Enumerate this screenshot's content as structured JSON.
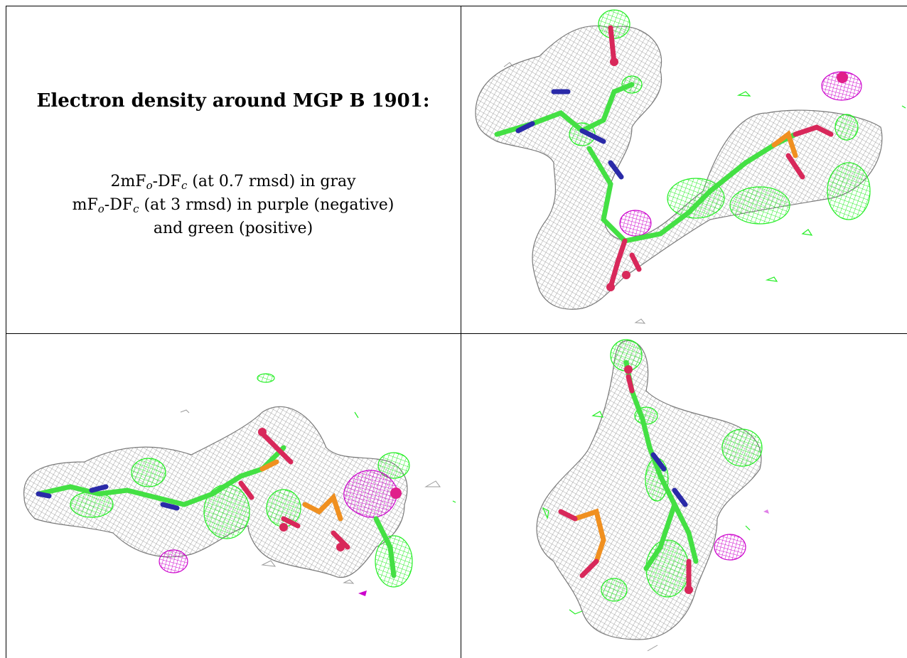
{
  "caption": {
    "title": "Electron density around MGP B 1901:",
    "line1_a": "2mF",
    "line1_sub1": "o",
    "line1_b": "-DF",
    "line1_sub2": "c",
    "line1_c": " (at 0.7 rmsd) in gray",
    "line2_a": "mF",
    "line2_sub1": "o",
    "line2_b": "-DF",
    "line2_sub2": "c",
    "line2_c": " (at 3 rmsd) in purple (negative)",
    "line3": "and green (positive)"
  },
  "colors": {
    "mesh_gray": "#8a8a8a",
    "difference_negative": "#cc00cc",
    "difference_positive": "#22ee22",
    "carbon": "#44e044",
    "nitrogen": "#2a2aa8",
    "oxygen": "#d8285a",
    "phosphorus": "#f09020"
  }
}
